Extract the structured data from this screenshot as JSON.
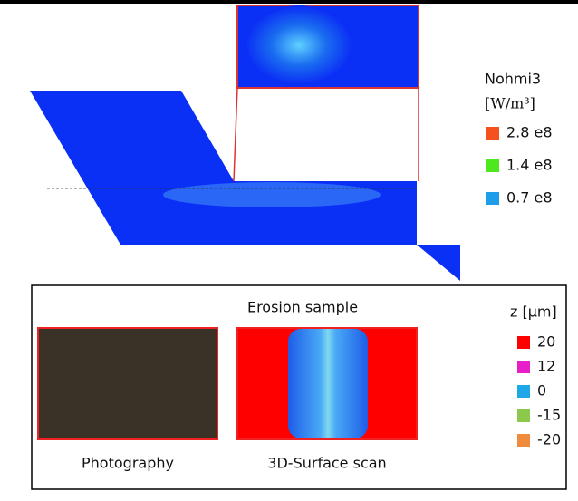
{
  "top": {
    "legend_title": "Nohmi3",
    "legend_unit": "[W/m³]",
    "legend": [
      {
        "label": "2.8 e8",
        "color": "#f4511e"
      },
      {
        "label": "1.4 e8",
        "color": "#4ee81e"
      },
      {
        "label": "0.7 e8",
        "color": "#1e9ee8"
      }
    ]
  },
  "bottom": {
    "title": "Erosion sample",
    "photo_caption": "Photography",
    "scan_caption": "3D-Surface scan",
    "legend_title": "z [µm]",
    "legend": [
      {
        "label": "20",
        "color": "#ff0000"
      },
      {
        "label": "12",
        "color": "#e81ec8"
      },
      {
        "label": "0",
        "color": "#1ea8e8"
      },
      {
        "label": "-15",
        "color": "#8cc84b"
      },
      {
        "label": "-20",
        "color": "#f08a3c"
      }
    ]
  }
}
